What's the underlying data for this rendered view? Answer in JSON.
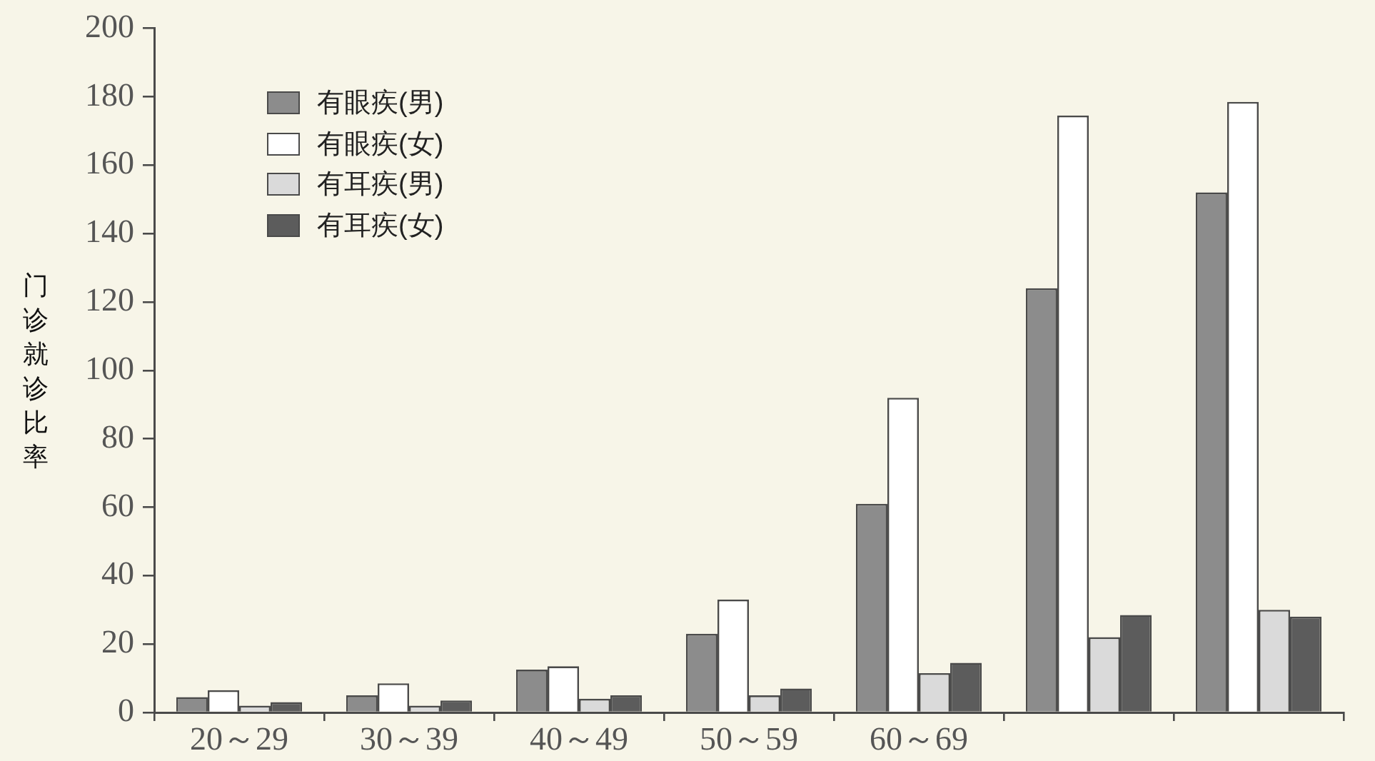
{
  "chart_data": {
    "type": "bar",
    "ylabel": "门诊就诊比率",
    "categories": [
      "20～29",
      "30～39",
      "40～49",
      "50～59",
      "60～69",
      null,
      null
    ],
    "series": [
      {
        "name": "有眼疾(男)",
        "color": "#8c8c8c",
        "values": [
          4.5,
          5,
          12.5,
          23,
          61,
          124,
          152
        ]
      },
      {
        "name": "有眼疾(女)",
        "color": "#ffffff",
        "values": [
          6.5,
          8.5,
          13.5,
          33,
          92,
          174.5,
          178.5
        ]
      },
      {
        "name": "有耳疾(男)",
        "color": "#dadada",
        "values": [
          2,
          2,
          4,
          5,
          11.5,
          22,
          30
        ]
      },
      {
        "name": "有耳疾(女)",
        "color": "#5c5c5c",
        "values": [
          3,
          3.5,
          5,
          7,
          14.5,
          28.5,
          28
        ]
      }
    ],
    "ylim": [
      0,
      200
    ],
    "yticks": [
      0,
      20,
      40,
      60,
      80,
      100,
      120,
      140,
      160,
      180,
      200
    ],
    "grid": false,
    "legend": "top left"
  }
}
